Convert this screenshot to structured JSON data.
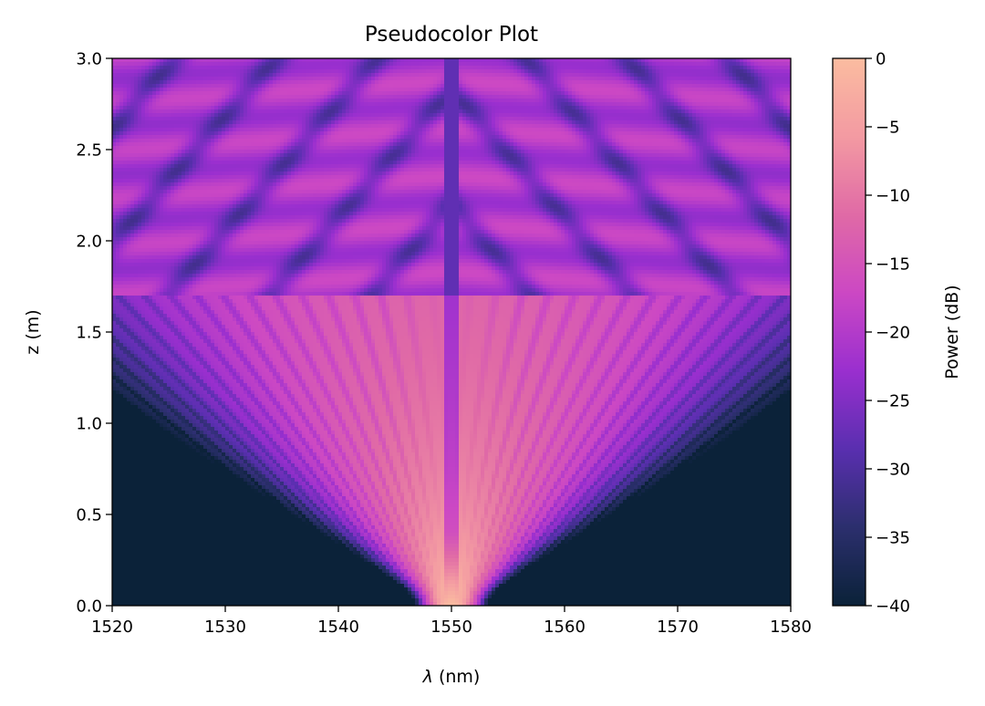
{
  "chart_data": {
    "type": "heatmap",
    "title": "Pseudocolor Plot",
    "xlabel_symbol": "λ",
    "xlabel_unit": "(nm)",
    "ylabel": "z (m)",
    "colorbar_label": "Power (dB)",
    "xlim": [
      1520,
      1580
    ],
    "ylim": [
      0.0,
      3.0
    ],
    "clim": [
      -40,
      0
    ],
    "x_ticks": [
      {
        "value": 1520,
        "label": "1520"
      },
      {
        "value": 1530,
        "label": "1530"
      },
      {
        "value": 1540,
        "label": "1540"
      },
      {
        "value": 1550,
        "label": "1550"
      },
      {
        "value": 1560,
        "label": "1560"
      },
      {
        "value": 1570,
        "label": "1570"
      },
      {
        "value": 1580,
        "label": "1580"
      }
    ],
    "y_ticks": [
      {
        "value": 0.0,
        "label": "0.0"
      },
      {
        "value": 0.5,
        "label": "0.5"
      },
      {
        "value": 1.0,
        "label": "1.0"
      },
      {
        "value": 1.5,
        "label": "1.5"
      },
      {
        "value": 2.0,
        "label": "2.0"
      },
      {
        "value": 2.5,
        "label": "2.5"
      },
      {
        "value": 3.0,
        "label": "3.0"
      }
    ],
    "colorbar_ticks": [
      {
        "value": 0,
        "label": "0"
      },
      {
        "value": -5,
        "label": "−5"
      },
      {
        "value": -10,
        "label": "−10"
      },
      {
        "value": -15,
        "label": "−15"
      },
      {
        "value": -20,
        "label": "−20"
      },
      {
        "value": -25,
        "label": "−25"
      },
      {
        "value": -30,
        "label": "−30"
      },
      {
        "value": -35,
        "label": "−35"
      },
      {
        "value": -40,
        "label": "−40"
      }
    ],
    "colormap": [
      "#0b2239",
      "#2c2f6e",
      "#5a2fb0",
      "#9a2fcf",
      "#cc48c4",
      "#e06aa6",
      "#f39aa2",
      "#fbbca0"
    ],
    "field": {
      "center_wavelength": 1550,
      "initial_width_nm": 1.5,
      "spread_rate_nm_per_m": 14,
      "breakup_z": 1.7,
      "peak_power_db": 0,
      "floor_power_db": -40
    }
  }
}
